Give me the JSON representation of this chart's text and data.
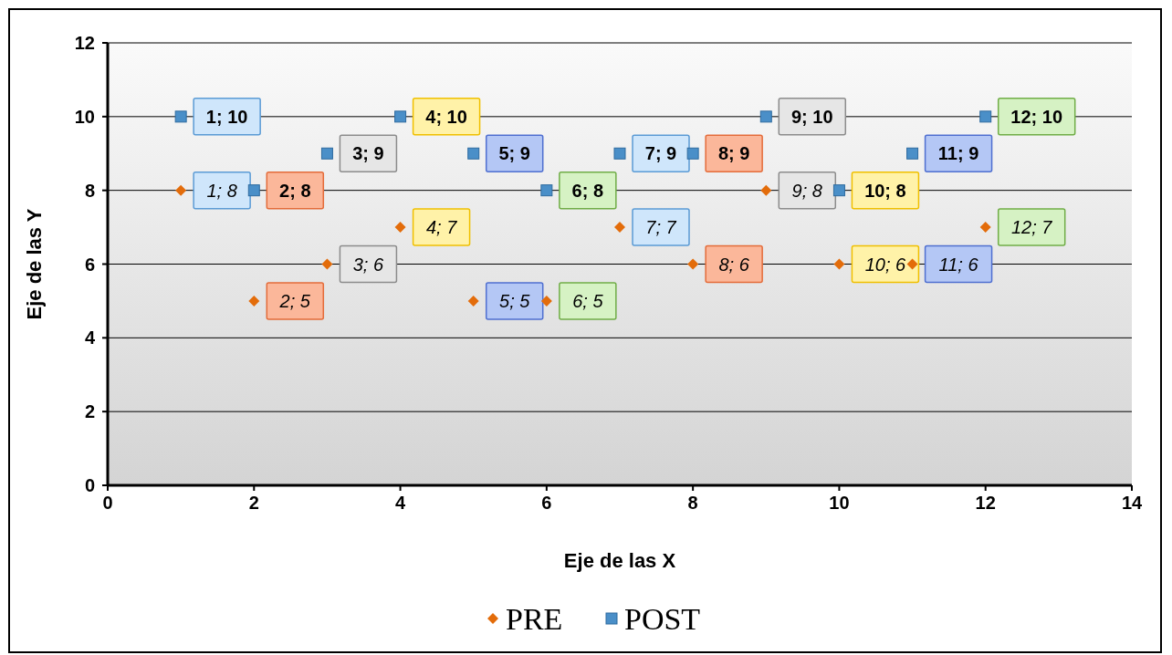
{
  "chart_data": {
    "type": "scatter",
    "xlabel": "Eje de las X",
    "ylabel": "Eje de las Y",
    "xlim": [
      0,
      14
    ],
    "xticks": [
      0,
      2,
      4,
      6,
      8,
      10,
      12,
      14
    ],
    "ylim": [
      0,
      12
    ],
    "yticks": [
      0,
      2,
      4,
      6,
      8,
      10,
      12
    ],
    "grid": "y",
    "legend": "bottom",
    "series": [
      {
        "name": "PRE",
        "color": "#e36c0a",
        "marker": "diamond",
        "x": [
          1,
          2,
          3,
          4,
          5,
          6,
          7,
          8,
          9,
          10,
          11,
          12
        ],
        "values": [
          8,
          5,
          6,
          7,
          5,
          5,
          7,
          6,
          8,
          6,
          6,
          7
        ],
        "value_labels": [
          "1; 8",
          "2; 5",
          "3; 6",
          "4; 7",
          "5; 5",
          "6; 5",
          "7; 7",
          "8; 6",
          "9; 8",
          "10; 6",
          "11; 6",
          "12; 7"
        ]
      },
      {
        "name": "POST",
        "color": "#4a8fc8",
        "marker": "square",
        "x": [
          1,
          2,
          3,
          4,
          5,
          6,
          7,
          8,
          9,
          10,
          11,
          12
        ],
        "values": [
          10,
          8,
          9,
          10,
          9,
          8,
          9,
          9,
          10,
          8,
          9,
          10
        ],
        "value_labels": [
          "1; 10",
          "2; 8",
          "3; 9",
          "4; 10",
          "5; 9",
          "6; 8",
          "7; 9",
          "8; 9",
          "9; 10",
          "10; 8",
          "11; 9",
          "12; 10"
        ]
      }
    ]
  }
}
